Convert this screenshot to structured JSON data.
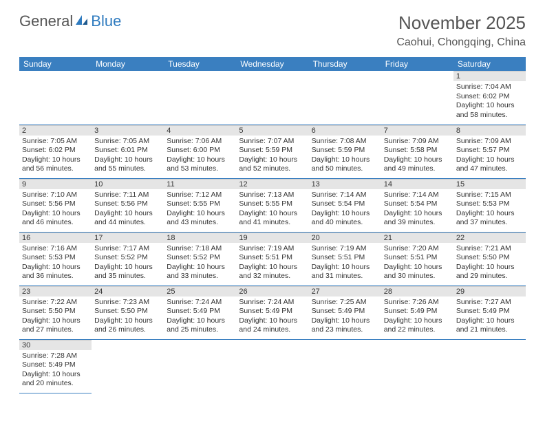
{
  "logo": {
    "general": "General",
    "blue": "Blue"
  },
  "title": "November 2025",
  "location": "Caohui, Chongqing, China",
  "colors": {
    "header_bg": "#3a7fc0",
    "header_text": "#ffffff",
    "daynum_bg": "#e5e5e5",
    "text": "#333333",
    "title_text": "#555555",
    "logo_blue": "#2f7bbf",
    "cell_border": "#3a7fc0"
  },
  "weekdays": [
    "Sunday",
    "Monday",
    "Tuesday",
    "Wednesday",
    "Thursday",
    "Friday",
    "Saturday"
  ],
  "first_weekday_index": 6,
  "days": [
    {
      "n": 1,
      "sr": "7:04 AM",
      "ss": "6:02 PM",
      "dl": "10 hours and 58 minutes."
    },
    {
      "n": 2,
      "sr": "7:05 AM",
      "ss": "6:02 PM",
      "dl": "10 hours and 56 minutes."
    },
    {
      "n": 3,
      "sr": "7:05 AM",
      "ss": "6:01 PM",
      "dl": "10 hours and 55 minutes."
    },
    {
      "n": 4,
      "sr": "7:06 AM",
      "ss": "6:00 PM",
      "dl": "10 hours and 53 minutes."
    },
    {
      "n": 5,
      "sr": "7:07 AM",
      "ss": "5:59 PM",
      "dl": "10 hours and 52 minutes."
    },
    {
      "n": 6,
      "sr": "7:08 AM",
      "ss": "5:59 PM",
      "dl": "10 hours and 50 minutes."
    },
    {
      "n": 7,
      "sr": "7:09 AM",
      "ss": "5:58 PM",
      "dl": "10 hours and 49 minutes."
    },
    {
      "n": 8,
      "sr": "7:09 AM",
      "ss": "5:57 PM",
      "dl": "10 hours and 47 minutes."
    },
    {
      "n": 9,
      "sr": "7:10 AM",
      "ss": "5:56 PM",
      "dl": "10 hours and 46 minutes."
    },
    {
      "n": 10,
      "sr": "7:11 AM",
      "ss": "5:56 PM",
      "dl": "10 hours and 44 minutes."
    },
    {
      "n": 11,
      "sr": "7:12 AM",
      "ss": "5:55 PM",
      "dl": "10 hours and 43 minutes."
    },
    {
      "n": 12,
      "sr": "7:13 AM",
      "ss": "5:55 PM",
      "dl": "10 hours and 41 minutes."
    },
    {
      "n": 13,
      "sr": "7:14 AM",
      "ss": "5:54 PM",
      "dl": "10 hours and 40 minutes."
    },
    {
      "n": 14,
      "sr": "7:14 AM",
      "ss": "5:54 PM",
      "dl": "10 hours and 39 minutes."
    },
    {
      "n": 15,
      "sr": "7:15 AM",
      "ss": "5:53 PM",
      "dl": "10 hours and 37 minutes."
    },
    {
      "n": 16,
      "sr": "7:16 AM",
      "ss": "5:53 PM",
      "dl": "10 hours and 36 minutes."
    },
    {
      "n": 17,
      "sr": "7:17 AM",
      "ss": "5:52 PM",
      "dl": "10 hours and 35 minutes."
    },
    {
      "n": 18,
      "sr": "7:18 AM",
      "ss": "5:52 PM",
      "dl": "10 hours and 33 minutes."
    },
    {
      "n": 19,
      "sr": "7:19 AM",
      "ss": "5:51 PM",
      "dl": "10 hours and 32 minutes."
    },
    {
      "n": 20,
      "sr": "7:19 AM",
      "ss": "5:51 PM",
      "dl": "10 hours and 31 minutes."
    },
    {
      "n": 21,
      "sr": "7:20 AM",
      "ss": "5:51 PM",
      "dl": "10 hours and 30 minutes."
    },
    {
      "n": 22,
      "sr": "7:21 AM",
      "ss": "5:50 PM",
      "dl": "10 hours and 29 minutes."
    },
    {
      "n": 23,
      "sr": "7:22 AM",
      "ss": "5:50 PM",
      "dl": "10 hours and 27 minutes."
    },
    {
      "n": 24,
      "sr": "7:23 AM",
      "ss": "5:50 PM",
      "dl": "10 hours and 26 minutes."
    },
    {
      "n": 25,
      "sr": "7:24 AM",
      "ss": "5:49 PM",
      "dl": "10 hours and 25 minutes."
    },
    {
      "n": 26,
      "sr": "7:24 AM",
      "ss": "5:49 PM",
      "dl": "10 hours and 24 minutes."
    },
    {
      "n": 27,
      "sr": "7:25 AM",
      "ss": "5:49 PM",
      "dl": "10 hours and 23 minutes."
    },
    {
      "n": 28,
      "sr": "7:26 AM",
      "ss": "5:49 PM",
      "dl": "10 hours and 22 minutes."
    },
    {
      "n": 29,
      "sr": "7:27 AM",
      "ss": "5:49 PM",
      "dl": "10 hours and 21 minutes."
    },
    {
      "n": 30,
      "sr": "7:28 AM",
      "ss": "5:49 PM",
      "dl": "10 hours and 20 minutes."
    }
  ],
  "labels": {
    "sunrise": "Sunrise:",
    "sunset": "Sunset:",
    "daylight": "Daylight:"
  }
}
